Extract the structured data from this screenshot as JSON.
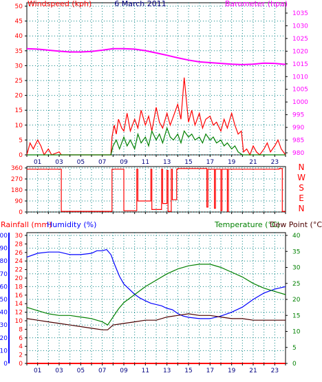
{
  "chart_data": [
    {
      "type": "line",
      "title": "6 March 2011",
      "ylabel_left": "Windspeed (kph)",
      "ylabel_right": "Barometer (hpa)",
      "xlim": [
        0,
        24
      ],
      "ylim_left": [
        0,
        50
      ],
      "ylim_right": [
        980,
        1035
      ],
      "left_ticks": [
        0,
        5,
        10,
        15,
        20,
        25,
        30,
        35,
        40,
        45,
        50
      ],
      "right_ticks": [
        980,
        985,
        990,
        995,
        1000,
        1005,
        1010,
        1015,
        1020,
        1025,
        1030,
        1035
      ],
      "x_ticks": [
        "01",
        "03",
        "05",
        "07",
        "09",
        "11",
        "13",
        "15",
        "17",
        "19",
        "21",
        "23"
      ],
      "grid": true,
      "series": [
        {
          "axis": "right",
          "color": "#ff00ff",
          "x": [
            0,
            1,
            2,
            3,
            4,
            5,
            6,
            7,
            8,
            9,
            10,
            11,
            12,
            13,
            14,
            15,
            16,
            17,
            18,
            19,
            20,
            21,
            22,
            23,
            24
          ],
          "values": [
            1021.0,
            1020.8,
            1020.4,
            1020.0,
            1019.7,
            1019.7,
            1019.9,
            1020.4,
            1021.0,
            1021.0,
            1020.8,
            1020.2,
            1019.3,
            1018.4,
            1017.4,
            1016.5,
            1015.8,
            1015.5,
            1015.2,
            1014.9,
            1014.7,
            1014.9,
            1015.3,
            1015.2,
            1014.8
          ]
        },
        {
          "axis": "left",
          "color": "#ff0000",
          "x": [
            0,
            0.3,
            0.6,
            1,
            1.3,
            1.6,
            2,
            2.3,
            3,
            3.2,
            4,
            6,
            7.8,
            7.9,
            8.1,
            8.3,
            8.5,
            8.8,
            9,
            9.3,
            9.6,
            10,
            10.3,
            10.6,
            11,
            11.3,
            11.6,
            12,
            12.3,
            12.6,
            13,
            13.3,
            13.6,
            14,
            14.3,
            14.6,
            15,
            15.3,
            15.6,
            16,
            16.3,
            16.6,
            17,
            17.3,
            17.6,
            18,
            18.3,
            18.6,
            19,
            19.3,
            19.6,
            19.9,
            20.1,
            20.4,
            20.7,
            21,
            21.3,
            21.6,
            22,
            22.3,
            22.6,
            23,
            23.3,
            23.6,
            24
          ],
          "values": [
            0,
            4,
            2,
            5,
            3,
            0,
            2,
            0,
            1,
            0,
            0,
            0,
            0,
            6,
            10,
            7,
            12,
            9,
            8,
            14,
            8,
            12,
            9,
            15,
            10,
            13,
            8,
            16,
            11,
            9,
            14,
            10,
            13,
            17,
            12,
            26,
            11,
            15,
            10,
            14,
            9,
            12,
            13,
            10,
            11,
            8,
            12,
            9,
            14,
            10,
            7,
            8,
            1,
            2,
            0,
            3,
            1,
            0,
            2,
            4,
            1,
            3,
            5,
            2,
            0
          ]
        },
        {
          "axis": "left",
          "color": "#008000",
          "x": [
            0,
            7.8,
            8.0,
            8.3,
            8.6,
            9,
            9.3,
            9.6,
            10,
            10.3,
            10.6,
            11,
            11.3,
            11.6,
            12,
            12.3,
            12.6,
            13,
            13.3,
            13.6,
            14,
            14.3,
            14.6,
            15,
            15.3,
            15.6,
            16,
            16.3,
            16.6,
            17,
            17.3,
            17.6,
            18,
            18.3,
            18.6,
            19,
            19.3,
            19.6,
            20,
            24
          ],
          "values": [
            0,
            0,
            3,
            5,
            2,
            6,
            3,
            5,
            2,
            7,
            4,
            6,
            3,
            8,
            5,
            7,
            4,
            9,
            6,
            5,
            7,
            4,
            8,
            6,
            7,
            5,
            6,
            4,
            7,
            5,
            6,
            4,
            5,
            3,
            4,
            2,
            3,
            1,
            0,
            0
          ]
        }
      ]
    },
    {
      "type": "line",
      "ylabel_right": [
        "N",
        "W",
        "S",
        "E",
        "N"
      ],
      "xlim": [
        0,
        24
      ],
      "ylim": [
        0,
        360
      ],
      "left_ticks": [
        0,
        90,
        180,
        270,
        360
      ],
      "grid": true,
      "series": [
        {
          "color": "#ff0000",
          "x": [
            0,
            3.2,
            3.2,
            7.9,
            7.9,
            9.0,
            9.0,
            10.2,
            10.2,
            10.3,
            10.3,
            11.5,
            11.5,
            11.6,
            11.6,
            12.5,
            12.5,
            12.6,
            12.6,
            13.0,
            13.0,
            13.1,
            13.1,
            13.4,
            13.4,
            13.5,
            13.5,
            13.9,
            13.9,
            14.0,
            14.0,
            16.7,
            16.7,
            16.8,
            16.8,
            17.4,
            17.4,
            17.5,
            17.5,
            18.0,
            18.0,
            18.1,
            18.1,
            18.6,
            18.6,
            18.7,
            18.7,
            23.4,
            23.4,
            23.7,
            23.7,
            24
          ],
          "values": [
            350,
            350,
            5,
            5,
            350,
            350,
            10,
            10,
            350,
            350,
            90,
            90,
            350,
            350,
            20,
            20,
            350,
            350,
            70,
            70,
            340,
            340,
            5,
            5,
            350,
            350,
            100,
            100,
            350,
            350,
            355,
            355,
            40,
            40,
            350,
            350,
            30,
            30,
            350,
            350,
            10,
            10,
            350,
            350,
            5,
            5,
            350,
            350,
            355,
            355,
            5,
            5
          ]
        }
      ]
    },
    {
      "type": "line",
      "ylabel_left": "Rainfall (mm)",
      "ylabel_left2": "Humidity (%)",
      "ylabel_right": "Temperature (°C)",
      "ylabel_right2": "Dew Point (°C)",
      "xlim": [
        0,
        24
      ],
      "humidity_ticks": [
        0,
        10,
        20,
        30,
        40,
        50,
        60,
        70,
        80,
        90,
        100
      ],
      "rain_ticks": [
        0,
        2,
        4,
        6,
        8,
        10,
        12,
        14,
        16,
        18,
        20,
        22,
        24,
        26,
        28,
        30
      ],
      "temp_ticks": [
        0,
        5,
        10,
        15,
        20,
        25,
        30,
        35,
        40
      ],
      "x_ticks": [
        "01",
        "03",
        "05",
        "07",
        "09",
        "11",
        "13",
        "15",
        "17",
        "19",
        "21",
        "23"
      ],
      "grid": true,
      "series": [
        {
          "axis": "humidity",
          "color": "#0000ff",
          "x": [
            0,
            1,
            2,
            3,
            4,
            5,
            6,
            6.5,
            7,
            7.4,
            7.8,
            8.2,
            8.6,
            9,
            9.5,
            10,
            10.5,
            11,
            11.5,
            12,
            12.5,
            13,
            13.5,
            14,
            14.5,
            15,
            16,
            17,
            18,
            19,
            20,
            21,
            22,
            23,
            24
          ],
          "values": [
            83,
            86,
            87,
            87,
            85,
            85,
            86,
            88,
            88,
            89,
            85,
            76,
            68,
            62,
            58,
            54,
            51,
            49,
            47,
            46,
            45,
            43,
            42,
            39,
            37,
            36,
            35,
            35,
            37,
            40,
            44,
            50,
            55,
            58,
            60
          ]
        },
        {
          "axis": "temperature",
          "color": "#008000",
          "x": [
            0,
            1,
            2,
            3,
            4,
            5,
            6,
            7,
            7.5,
            8,
            8.5,
            9,
            10,
            11,
            12,
            13,
            14,
            15,
            16,
            17,
            18,
            19,
            20,
            21,
            22,
            23,
            24
          ],
          "values": [
            17.5,
            16.5,
            15.5,
            15.0,
            15.0,
            14.5,
            14.0,
            13.0,
            12.0,
            14.5,
            17.0,
            19.0,
            21.5,
            24.0,
            26.0,
            28.0,
            29.5,
            30.5,
            31.0,
            31.0,
            30.0,
            28.5,
            27.0,
            25.0,
            23.5,
            22.5,
            21.5
          ]
        },
        {
          "axis": "temperature",
          "color": "#4b0000",
          "x": [
            0,
            1,
            2,
            3,
            4,
            5,
            6,
            7,
            7.5,
            8,
            9,
            10,
            11,
            12,
            13,
            14,
            15,
            16,
            17,
            18,
            19,
            20,
            21,
            22,
            23,
            24
          ],
          "values": [
            14.0,
            13.5,
            13.0,
            12.5,
            12.0,
            11.5,
            11.0,
            10.5,
            10.5,
            12.0,
            12.5,
            13.0,
            13.5,
            13.5,
            14.5,
            15.0,
            15.5,
            15.0,
            15.0,
            14.5,
            14.0,
            14.0,
            13.5,
            13.5,
            13.5,
            13.5
          ]
        },
        {
          "axis": "rainfall",
          "color": "#ff0000",
          "x": [
            0,
            24
          ],
          "values": [
            0,
            0
          ]
        }
      ]
    }
  ]
}
